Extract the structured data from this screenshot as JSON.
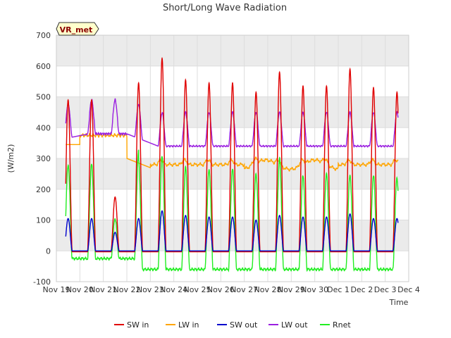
{
  "chart_data": {
    "type": "line",
    "title": "Short/Long Wave Radiation",
    "xlabel": "Time",
    "ylabel": "(W/m2)",
    "station_label": "VR_met",
    "ylim": [
      -100,
      700
    ],
    "xlim": [
      0,
      15
    ],
    "y_ticks": [
      -100,
      0,
      100,
      200,
      300,
      400,
      500,
      600,
      700
    ],
    "x_ticks": [
      "Nov 19",
      "Nov 20",
      "Nov 21",
      "Nov 22",
      "Nov 23",
      "Nov 24",
      "Nov 25",
      "Nov 26",
      "Nov 27",
      "Nov 28",
      "Nov 29",
      "Nov 30",
      "Dec 1",
      "Dec 2",
      "Dec 3",
      "Dec 4"
    ],
    "grid": true,
    "legend_position": "bottom",
    "x_range_data": [
      0.4,
      14.55
    ],
    "daily_peaks": {
      "days": [
        "Nov 20",
        "Nov 21",
        "Nov 22",
        "Nov 23",
        "Nov 24",
        "Nov 25",
        "Nov 26",
        "Nov 27",
        "Nov 28",
        "Nov 29",
        "Nov 30",
        "Dec 1",
        "Dec 2",
        "Dec 3"
      ],
      "sw_in": [
        490,
        175,
        545,
        625,
        555,
        545,
        545,
        515,
        580,
        535,
        535,
        590,
        530,
        515
      ],
      "sw_out": [
        105,
        60,
        105,
        130,
        115,
        110,
        110,
        100,
        115,
        110,
        110,
        120,
        105,
        105
      ],
      "rnet": [
        245,
        70,
        290,
        310,
        270,
        265,
        265,
        250,
        300,
        245,
        250,
        245,
        245,
        235
      ]
    },
    "series": [
      {
        "name": "SW in",
        "color": "#e00000"
      },
      {
        "name": "LW in",
        "color": "#ffa500"
      },
      {
        "name": "SW out",
        "color": "#0000cc"
      },
      {
        "name": "LW out",
        "color": "#9a1fe0"
      },
      {
        "name": "Rnet",
        "color": "#22ee22"
      }
    ]
  }
}
